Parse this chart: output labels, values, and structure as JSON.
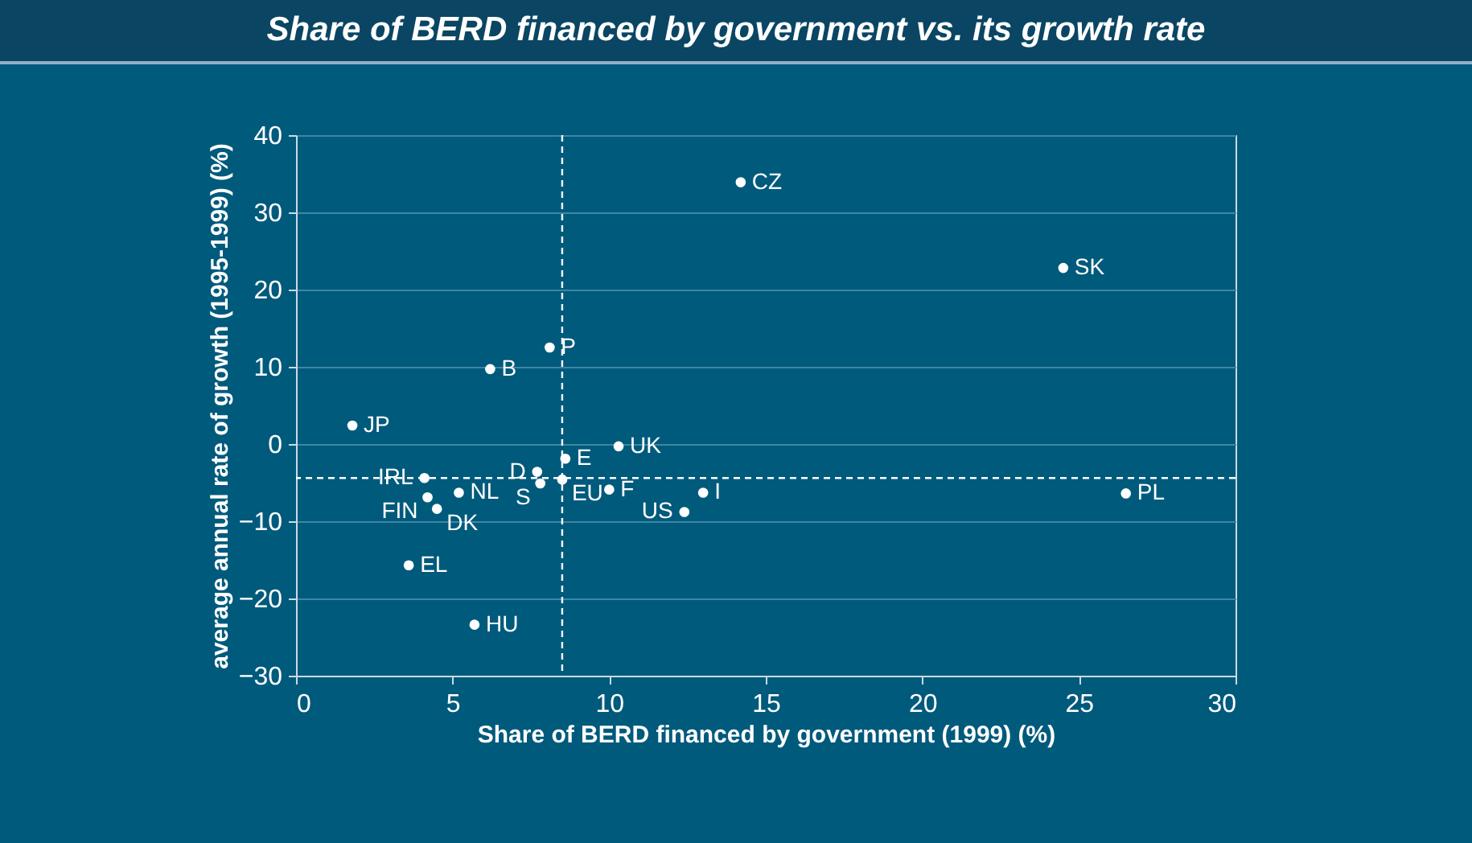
{
  "chart_data": {
    "type": "scatter",
    "title": "Share of BERD financed by government vs. its growth rate",
    "xlabel": "Share of BERD financed by government (1999) (%)",
    "ylabel": "average annual rate of growth (1995-1999) (%)",
    "xlim": [
      0,
      30
    ],
    "xticks": [
      0,
      5,
      10,
      15,
      20,
      25,
      30
    ],
    "ylim": [
      -30,
      40
    ],
    "yticks": [
      -30,
      -20,
      -10,
      0,
      10,
      20,
      30,
      40
    ],
    "grid": "y",
    "legend": false,
    "marker": "circle",
    "series": [
      {
        "name": "JP",
        "color": "#ffffff",
        "x": [
          1.8
        ],
        "values": [
          2.4
        ]
      },
      {
        "name": "B",
        "color": "#ffffff",
        "x": [
          6.2
        ],
        "values": [
          9.7
        ]
      },
      {
        "name": "P",
        "color": "#ffffff",
        "x": [
          8.1
        ],
        "values": [
          12.5
        ]
      },
      {
        "name": "CZ",
        "color": "#ffffff",
        "x": [
          14.2
        ],
        "values": [
          33.9
        ]
      },
      {
        "name": "SK",
        "color": "#ffffff",
        "x": [
          24.5
        ],
        "values": [
          22.8
        ]
      },
      {
        "name": "UK",
        "color": "#ffffff",
        "x": [
          10.3
        ],
        "values": [
          -0.3
        ]
      },
      {
        "name": "E",
        "color": "#ffffff",
        "x": [
          8.6
        ],
        "values": [
          -1.9
        ]
      },
      {
        "name": "D",
        "color": "#ffffff",
        "x": [
          7.7
        ],
        "values": [
          -3.6
        ]
      },
      {
        "name": "S",
        "color": "#ffffff",
        "x": [
          7.8
        ],
        "values": [
          -5.1
        ]
      },
      {
        "name": "EU",
        "color": "#ffffff",
        "x": [
          8.5
        ],
        "values": [
          -4.6
        ]
      },
      {
        "name": "IRL",
        "color": "#ffffff",
        "x": [
          4.1
        ],
        "values": [
          -4.4
        ]
      },
      {
        "name": "F",
        "color": "#ffffff",
        "x": [
          10.0
        ],
        "values": [
          -5.9
        ]
      },
      {
        "name": "I",
        "color": "#ffffff",
        "x": [
          13.0
        ],
        "values": [
          -6.3
        ]
      },
      {
        "name": "US",
        "color": "#ffffff",
        "x": [
          12.4
        ],
        "values": [
          -8.8
        ]
      },
      {
        "name": "FIN",
        "color": "#ffffff",
        "x": [
          4.2
        ],
        "values": [
          -6.9
        ]
      },
      {
        "name": "NL",
        "color": "#ffffff",
        "x": [
          5.2
        ],
        "values": [
          -6.3
        ]
      },
      {
        "name": "DK",
        "color": "#ffffff",
        "x": [
          4.5
        ],
        "values": [
          -8.4
        ]
      },
      {
        "name": "EL",
        "color": "#ffffff",
        "x": [
          3.6
        ],
        "values": [
          -15.7
        ]
      },
      {
        "name": "HU",
        "color": "#ffffff",
        "x": [
          5.7
        ],
        "values": [
          -23.4
        ]
      },
      {
        "name": "PL",
        "color": "#ffffff",
        "x": [
          26.5
        ],
        "values": [
          -6.4
        ]
      }
    ],
    "ref_lines": [
      {
        "axis": "x",
        "value": 8.5,
        "color": "#ffffff",
        "line_style": "dashed"
      },
      {
        "axis": "y",
        "value": -4.4,
        "color": "#ffffff",
        "line_style": "dashed"
      }
    ]
  }
}
